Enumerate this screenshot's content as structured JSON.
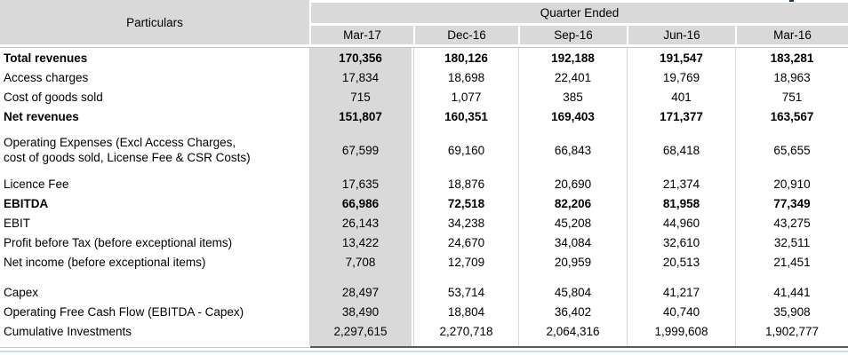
{
  "table": {
    "header": {
      "particulars_label": "Particulars",
      "group_label": "Quarter Ended",
      "columns": [
        "Mar-17",
        "Dec-16",
        "Sep-16",
        "Jun-16",
        "Mar-16"
      ]
    },
    "rows": [
      {
        "label": "Total revenues",
        "bold": true,
        "values": [
          "170,356",
          "180,126",
          "192,188",
          "191,547",
          "183,281"
        ]
      },
      {
        "label": "Access charges",
        "bold": false,
        "values": [
          "17,834",
          "18,698",
          "22,401",
          "19,769",
          "18,963"
        ]
      },
      {
        "label": "Cost of goods sold",
        "bold": false,
        "values": [
          "715",
          "1,077",
          "385",
          "401",
          "751"
        ]
      },
      {
        "label": "Net revenues",
        "bold": true,
        "values": [
          "151,807",
          "160,351",
          "169,403",
          "171,377",
          "163,567"
        ]
      },
      {
        "label": "Operating Expenses (Excl Access Charges,\ncost of goods sold, License Fee & CSR Costs)",
        "bold": false,
        "tall": true,
        "values": [
          "67,599",
          "69,160",
          "66,843",
          "68,418",
          "65,655"
        ]
      },
      {
        "label": "Licence Fee",
        "bold": false,
        "values": [
          "17,635",
          "18,876",
          "20,690",
          "21,374",
          "20,910"
        ]
      },
      {
        "label": "EBITDA",
        "bold": true,
        "values": [
          "66,986",
          "72,518",
          "82,206",
          "81,958",
          "77,349"
        ]
      },
      {
        "label": "EBIT",
        "bold": false,
        "values": [
          "26,143",
          "34,238",
          "45,208",
          "44,960",
          "43,275"
        ]
      },
      {
        "label": "Profit before Tax (before exceptional items)",
        "bold": false,
        "values": [
          "13,422",
          "24,670",
          "34,084",
          "32,610",
          "32,511"
        ]
      },
      {
        "label": "Net income (before exceptional items)",
        "bold": false,
        "spacer_after": true,
        "values": [
          "7,708",
          "12,709",
          "20,959",
          "20,513",
          "21,451"
        ]
      },
      {
        "label": "Capex",
        "bold": false,
        "values": [
          "28,497",
          "53,714",
          "45,804",
          "41,217",
          "41,441"
        ]
      },
      {
        "label": "Operating Free Cash Flow  (EBITDA - Capex)",
        "bold": false,
        "values": [
          "38,490",
          "18,804",
          "36,402",
          "40,740",
          "35,908"
        ]
      },
      {
        "label": "Cumulative Investments",
        "bold": false,
        "values": [
          "2,297,615",
          "2,270,718",
          "2,064,316",
          "1,999,608",
          "1,902,777"
        ]
      }
    ],
    "colors": {
      "header_bg": "#d9d9d9",
      "highlight_column_bg": "#d9d9d9",
      "grid_line": "#d9d9d9",
      "header_rule": "#bfbfbf",
      "bottom_line": "#555a5f",
      "accent_line": "#ccdaef"
    }
  }
}
